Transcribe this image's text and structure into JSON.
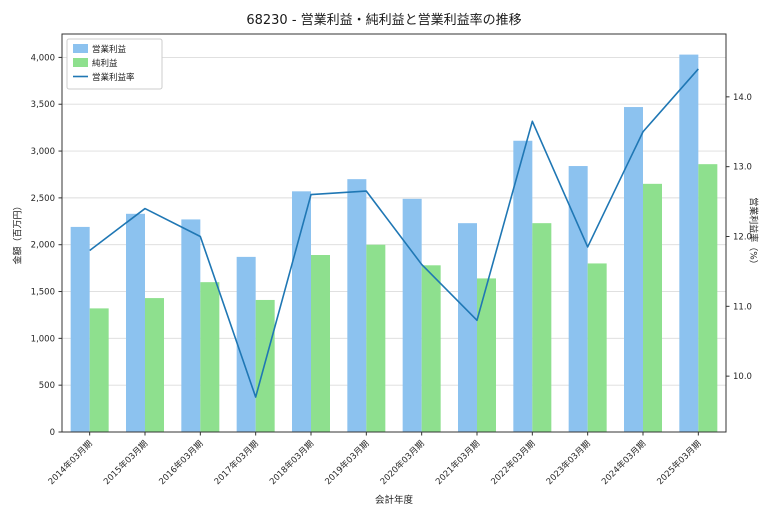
{
  "page": {
    "background": "#ffffff"
  },
  "colors": {
    "grid": "#dcdcdc",
    "frame": "#333333",
    "tick_text": "#262626",
    "legend_border": "#cccccc",
    "legend_bg": "#ffffff"
  },
  "chart_data": {
    "type": "bar",
    "title": "68230 - 営業利益・純利益と営業利益率の推移",
    "xlabel": "会計年度",
    "ylabel_left": "金額（百万円）",
    "ylabel_right": "営業利益率（%）",
    "categories": [
      "2014年03月期",
      "2015年03月期",
      "2016年03月期",
      "2017年03月期",
      "2018年03月期",
      "2019年03月期",
      "2020年03月期",
      "2021年03月期",
      "2022年03月期",
      "2023年03月期",
      "2024年03月期",
      "2025年03月期"
    ],
    "series": [
      {
        "name": "営業利益",
        "kind": "bar",
        "axis": "left",
        "color": "#8cc2ef",
        "values": [
          2190,
          2330,
          2270,
          1870,
          2570,
          2700,
          2490,
          2230,
          3110,
          2840,
          3470,
          4030
        ]
      },
      {
        "name": "純利益",
        "kind": "bar",
        "axis": "left",
        "color": "#8ee08e",
        "values": [
          1320,
          1430,
          1600,
          1410,
          1890,
          2000,
          1780,
          1640,
          2230,
          1800,
          2650,
          2860
        ]
      },
      {
        "name": "営業利益率",
        "kind": "line",
        "axis": "right",
        "color": "#1f77b4",
        "values": [
          11.8,
          12.4,
          12.0,
          9.7,
          12.6,
          12.65,
          11.6,
          10.8,
          13.65,
          11.85,
          13.5,
          14.4
        ]
      }
    ],
    "ylim_left": [
      0,
      4250
    ],
    "yticks_left": [
      0,
      500,
      1000,
      1500,
      2000,
      2500,
      3000,
      3500,
      4000
    ],
    "ylim_right": [
      9.2,
      14.9
    ],
    "yticks_right": [
      10.0,
      11.0,
      12.0,
      13.0,
      14.0
    ],
    "grid": true,
    "legend_position": "upper-left"
  }
}
